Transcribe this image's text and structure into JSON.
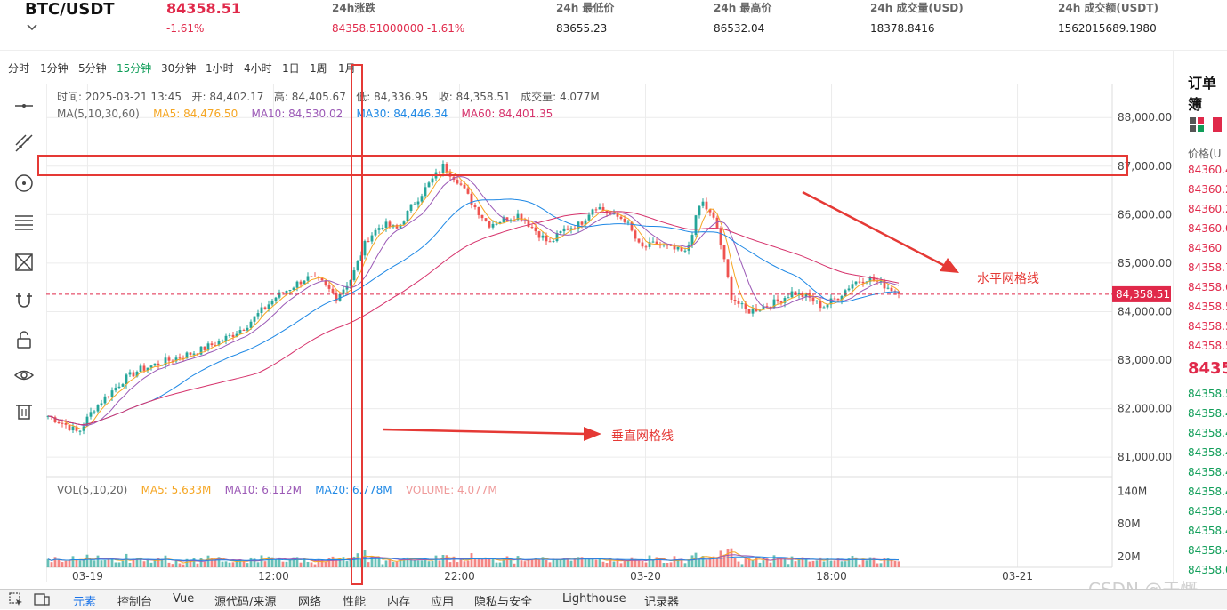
{
  "header": {
    "pair": "BTC/USDT",
    "price": "84358.51",
    "price_change": "-1.61%",
    "stats": [
      {
        "label": "24h涨跌",
        "value": "84358.51000000  -1.61%",
        "red": true
      },
      {
        "label": "24h 最低价",
        "value": "83655.23",
        "red": false
      },
      {
        "label": "24h 最高价",
        "value": "86532.04",
        "red": false
      },
      {
        "label": "24h 成交量(USD)",
        "value": "18378.8416",
        "red": false
      },
      {
        "label": "24h 成交额(USDT)",
        "value": "1562015689.1980",
        "red": false
      }
    ]
  },
  "intervals": [
    "分时",
    "1分钟",
    "5分钟",
    "15分钟",
    "30分钟",
    "1小时",
    "4小时",
    "1日",
    "1周",
    "1月"
  ],
  "active_interval": "15分钟",
  "toolbar": [
    "line-tool-icon",
    "trend-line-icon",
    "circle-tool-icon",
    "fib-lines-icon",
    "shape-tool-icon",
    "magnet-icon",
    "lock-icon",
    "eye-icon",
    "trash-icon"
  ],
  "legend": {
    "ohlc": {
      "time_label": "时间:",
      "time": "2025-03-21 13:45",
      "open_label": "开:",
      "open": "84,402.17",
      "high_label": "高:",
      "high": "84,405.67",
      "low_label": "低:",
      "low": "84,336.95",
      "close_label": "收:",
      "close": "84,358.51",
      "vol_label": "成交量:",
      "vol": "4.077M"
    },
    "ma": {
      "title": "MA(5,10,30,60)",
      "ma5": "MA5: 84,476.50",
      "ma10": "MA10: 84,530.02",
      "ma30": "MA30: 84,446.34",
      "ma60": "MA60: 84,401.35"
    },
    "vol": {
      "title": "VOL(5,10,20)",
      "ma5": "MA5: 5.633M",
      "ma10": "MA10: 6.112M",
      "ma20": "MA20: 6.778M",
      "volume": "VOLUME: 4.077M"
    }
  },
  "colors": {
    "up": "#26a69a",
    "down": "#ef5350",
    "ma5": "#f5a623",
    "ma10": "#9b59b6",
    "ma30": "#1e88e5",
    "ma60": "#d6336c",
    "annotation": "#e53935"
  },
  "chart_data": {
    "type": "candlestick",
    "y_ticks": [
      "88,000.00",
      "87,000.00",
      "86,000.00",
      "85,000.00",
      "84,000.00",
      "83,000.00",
      "82,000.00",
      "81,000.00"
    ],
    "ylim": [
      80600,
      88700
    ],
    "x_ticks": [
      "03-19",
      "12:00",
      "22:00",
      "03-20",
      "18:00",
      "03-21"
    ],
    "current_price_label": "84,358.51",
    "current_price": 84358.51,
    "close_path": [
      81850,
      81700,
      81500,
      82000,
      82300,
      82600,
      82800,
      82900,
      83000,
      83100,
      83200,
      83350,
      83500,
      83700,
      84000,
      84300,
      84500,
      84700,
      84600,
      84300,
      84700,
      85500,
      85800,
      85700,
      86200,
      86600,
      87000,
      86700,
      86200,
      85800,
      85900,
      86000,
      85700,
      85400,
      85700,
      85800,
      86200,
      86000,
      85900,
      85300,
      85400,
      85300,
      85200,
      86300,
      85800,
      84300,
      84000,
      84100,
      84200,
      84400,
      84300,
      84100,
      84300,
      84600,
      84700,
      84550,
      84400
    ],
    "vol_ticks": [
      "140M",
      "80M",
      "20M"
    ],
    "vol_max": 160
  },
  "orderbook": {
    "title": "订单簿",
    "price_label": "价格(U",
    "asks": [
      "84360.4",
      "84360.2",
      "84360.2",
      "84360.0",
      "84360",
      "84358.7",
      "84358.6",
      "84358.5",
      "84358.5",
      "84358.5"
    ],
    "mid": "8435",
    "bids": [
      "84358.5",
      "84358.4",
      "84358.4",
      "84358.4",
      "84358.4",
      "84358.4",
      "84358.4",
      "84358.4",
      "84358.4",
      "84358.0"
    ]
  },
  "devtools": {
    "tabs": [
      "元素",
      "控制台",
      "Vue",
      "源代码/来源",
      "网络",
      "性能",
      "内存",
      "应用",
      "隐私与安全",
      "Lighthouse",
      "记录器"
    ],
    "active": "元素"
  },
  "annotations": {
    "horizontal": "水平网格线",
    "vertical": "垂直网格线"
  },
  "watermark": "CSDN @于慨"
}
